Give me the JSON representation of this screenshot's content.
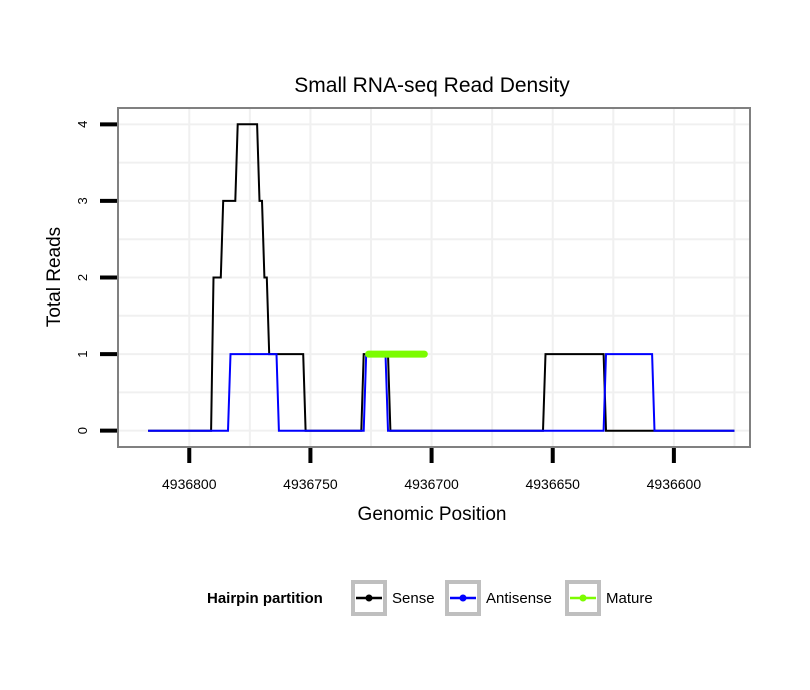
{
  "chart_data": {
    "type": "line",
    "title": "Small RNA-seq Read Density",
    "xlabel": "Genomic Position",
    "ylabel": "Total Reads",
    "x_reversed": true,
    "xlim": [
      4936829,
      4936569
    ],
    "ylim": [
      -0.2,
      4.2
    ],
    "x_ticks": [
      4936800,
      4936750,
      4936700,
      4936650,
      4936600
    ],
    "x_tick_labels": [
      "4936800",
      "4936750",
      "4936700",
      "4936650",
      "4936600"
    ],
    "y_ticks": [
      0,
      1,
      2,
      3,
      4
    ],
    "y_tick_labels": [
      "0",
      "1",
      "2",
      "3",
      "4"
    ],
    "grid": true,
    "legend": {
      "title": "Hairpin partition",
      "position": "bottom",
      "entries": [
        "Sense",
        "Antisense",
        "Mature"
      ]
    },
    "series": [
      {
        "name": "Sense",
        "color": "#000000",
        "x": [
          4936817,
          4936791,
          4936790,
          4936787,
          4936786,
          4936781,
          4936780,
          4936776,
          4936775,
          4936772,
          4936771,
          4936770,
          4936769,
          4936768,
          4936767,
          4936764,
          4936753,
          4936752,
          4936730,
          4936729,
          4936728,
          4936718,
          4936717,
          4936700,
          4936699,
          4936654,
          4936653,
          4936629,
          4936628,
          4936575
        ],
        "y": [
          0,
          0,
          2,
          2,
          3,
          3,
          4,
          4,
          4,
          4,
          3,
          3,
          2,
          2,
          1,
          1,
          1,
          0,
          0,
          0,
          1,
          1,
          0,
          0,
          0,
          0,
          1,
          1,
          0,
          0
        ]
      },
      {
        "name": "Antisense",
        "color": "#0000ff",
        "x": [
          4936817,
          4936784,
          4936783,
          4936764,
          4936763,
          4936752,
          4936728,
          4936727,
          4936719,
          4936718,
          4936654,
          4936629,
          4936628,
          4936609,
          4936608,
          4936575
        ],
        "y": [
          0,
          0,
          1,
          1,
          0,
          0,
          0,
          1,
          1,
          0,
          0,
          0,
          1,
          1,
          0,
          0
        ]
      },
      {
        "name": "Mature",
        "color": "#7cfc00",
        "x": [
          4936726,
          4936703
        ],
        "y": [
          1,
          1
        ]
      }
    ]
  }
}
